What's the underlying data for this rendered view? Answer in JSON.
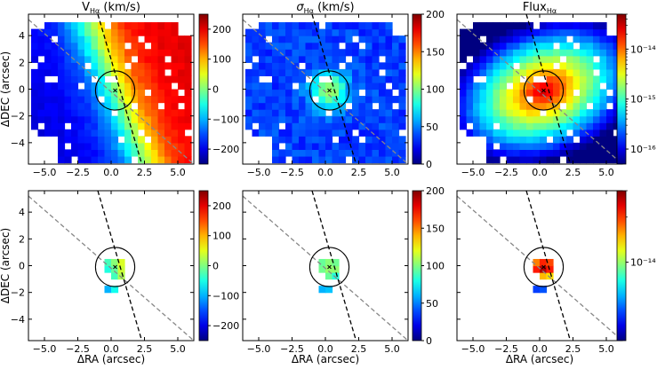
{
  "chart_data": {
    "type": "heatmap",
    "layout": "2x3",
    "grid": false,
    "x": {
      "label": "ΔRA (arcsec)",
      "lim": [
        -6.2,
        6.2
      ],
      "ticks": [
        -5,
        -2.5,
        0,
        2.5,
        5
      ],
      "tick_labels": [
        "−5.0",
        "−2.5",
        "0.0",
        "2.5",
        "5.0"
      ]
    },
    "y": {
      "label": "ΔDEC (arcsec)",
      "lim": [
        -5.6,
        5.6
      ],
      "ticks": [
        -4,
        -2,
        0,
        2,
        4
      ],
      "tick_labels": [
        "−4",
        "−2",
        "0",
        "2",
        "4"
      ]
    },
    "center": [
      0.3,
      -0.1
    ],
    "circle_radius": 0.95,
    "major_axis_line": {
      "style": "black dashed",
      "points": [
        [
          -1.0,
          5.6
        ],
        [
          2.3,
          -5.6
        ]
      ]
    },
    "minor_axis_line": {
      "style": "grey dashed",
      "points": [
        [
          -6.2,
          5.2
        ],
        [
          6.2,
          -5.6
        ]
      ]
    },
    "colormap": "jet",
    "top_row": "full field (all spaxels)",
    "bottom_row": "central spaxels only",
    "panels": [
      {
        "id": "vel",
        "title_main": "V",
        "title_sub": "Hα",
        "title_tail": " (km/s)",
        "title_italic": false,
        "colorbar": {
          "scale": "linear",
          "min": -250,
          "max": 250,
          "ticks": [
            200,
            100,
            0,
            -100,
            -200
          ],
          "tick_labels": [
            "200",
            "100",
            "0",
            "−100",
            "−200"
          ]
        }
      },
      {
        "id": "sig",
        "title_main": "σ",
        "title_sub": "Hα",
        "title_tail": " (km/s)",
        "title_italic": true,
        "colorbar": {
          "scale": "linear",
          "min": 0,
          "max": 200,
          "ticks": [
            200,
            150,
            100,
            50,
            0
          ],
          "tick_labels": [
            "200",
            "150",
            "100",
            "50",
            "0"
          ]
        }
      },
      {
        "id": "flux",
        "title_main": "Flux",
        "title_sub": "Hα",
        "title_tail": "",
        "title_italic": false,
        "colorbar": {
          "scale": "log",
          "top_min": 5e-17,
          "top_max": 5e-14,
          "top_ticks": [
            "10⁻¹⁴",
            "10⁻¹⁵",
            "10⁻¹⁶"
          ],
          "top_tick_values": [
            -14,
            -15,
            -16
          ],
          "bottom_min": 3e-15,
          "bottom_max": 3e-14,
          "bottom_ticks": [
            "10⁻¹⁴"
          ],
          "bottom_tick_values": [
            -14
          ]
        }
      }
    ],
    "kinematics": {
      "v_rotation_max": 200,
      "v_dispersion_peak": 95,
      "flux_peak": 3e-14,
      "grid_step_arcsec": 0.5
    }
  }
}
